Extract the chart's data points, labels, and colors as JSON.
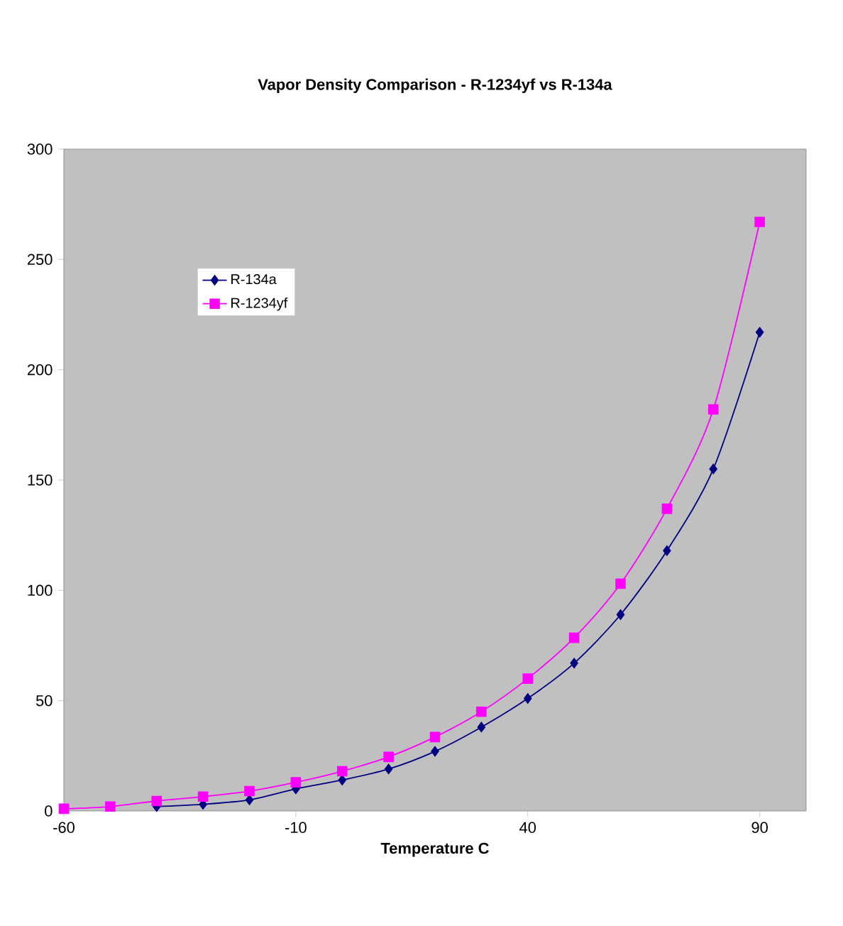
{
  "chart_data": {
    "type": "line",
    "title": "Vapor Density Comparison - R-1234yf vs R-134a",
    "xlabel": "Temperature C",
    "x": [
      -60,
      -50,
      -40,
      -30,
      -20,
      -10,
      0,
      10,
      20,
      30,
      40,
      50,
      60,
      70,
      80,
      90
    ],
    "series": [
      {
        "name": "R-134a",
        "color": "#000080",
        "marker": "diamond",
        "values": [
          null,
          null,
          2,
          3,
          5,
          10,
          14,
          19,
          27,
          38,
          51,
          67,
          89,
          118,
          155,
          217
        ]
      },
      {
        "name": "R-1234yf",
        "color": "#ff00ff",
        "marker": "square",
        "values": [
          1,
          2,
          4.5,
          6.5,
          9,
          13,
          18,
          24.5,
          33.5,
          45,
          60,
          78.5,
          103,
          137,
          182,
          267
        ]
      }
    ],
    "xlim": [
      -60,
      100
    ],
    "xticks": [
      -60,
      -10,
      40,
      90
    ],
    "ylim": [
      0,
      300
    ],
    "yticks": [
      0,
      50,
      100,
      150,
      200,
      250,
      300
    ],
    "grid": false,
    "legend": "top left"
  }
}
